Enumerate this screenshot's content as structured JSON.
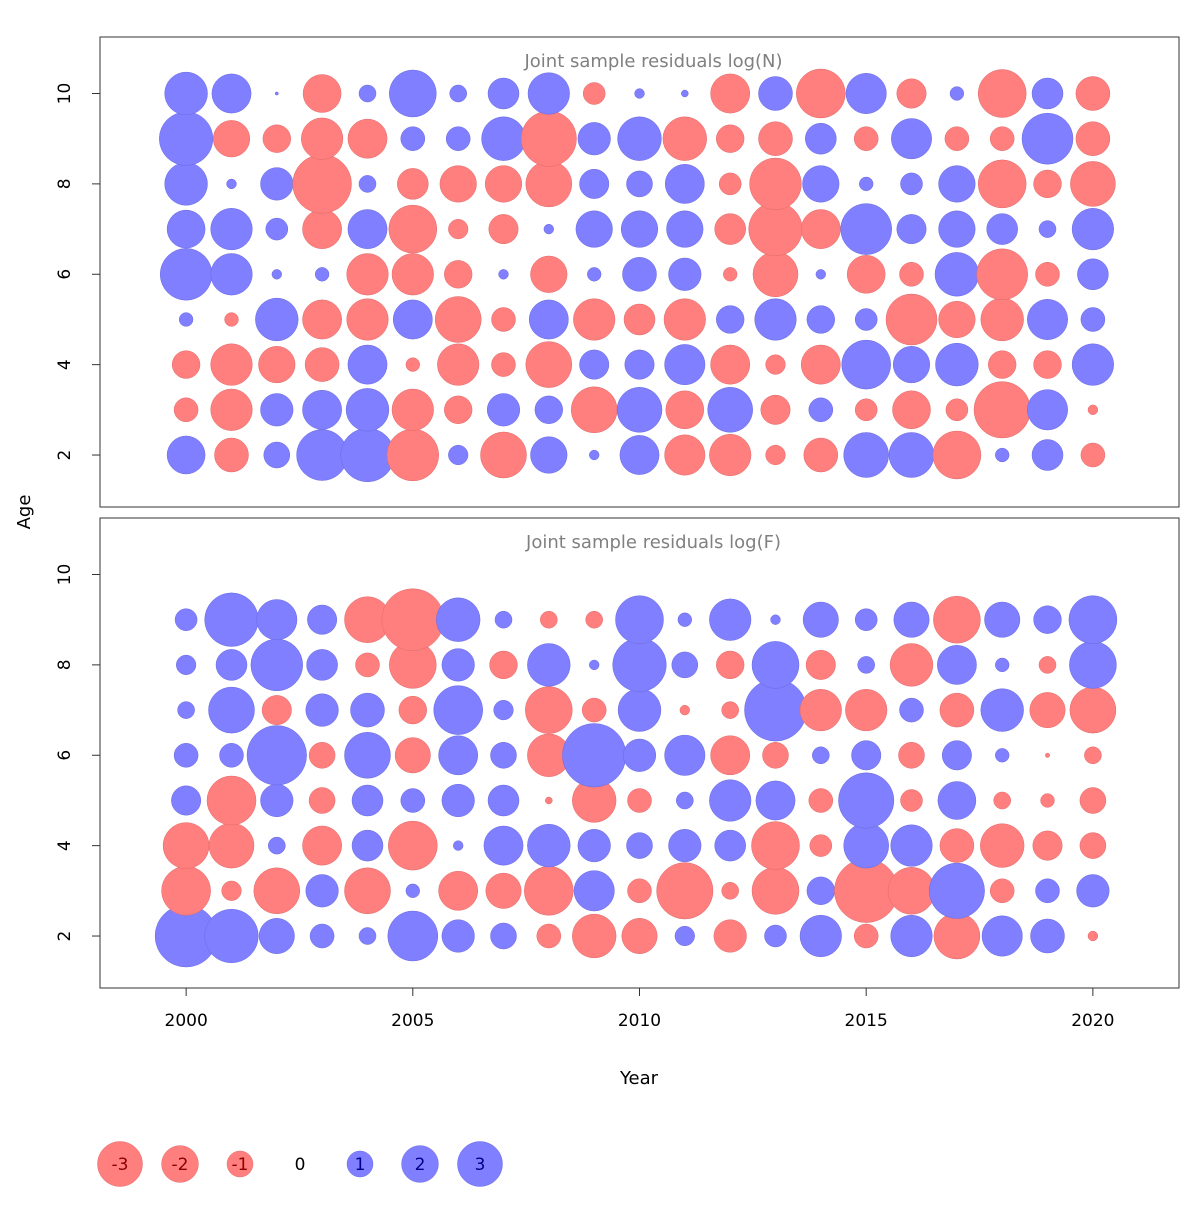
{
  "chart_data": {
    "type": "scatter",
    "ylabel": "Age",
    "xlabel": "Year",
    "x_ticks": [
      2000,
      2005,
      2010,
      2015,
      2020
    ],
    "y_ticks": [
      2,
      4,
      6,
      8,
      10
    ],
    "xlim": [
      1998.1,
      2021.9
    ],
    "ylim": [
      0.85,
      11.25
    ],
    "colors": {
      "positive": "#7f7fff",
      "negative": "#ff7f7f"
    },
    "legend": {
      "placement": "bottom-left",
      "entries": [
        {
          "label": "-3",
          "value": -3
        },
        {
          "label": "-2",
          "value": -2
        },
        {
          "label": "-1",
          "value": -1
        },
        {
          "label": "0",
          "value": 0
        },
        {
          "label": "1",
          "value": 1
        },
        {
          "label": "2",
          "value": 2
        },
        {
          "label": "3",
          "value": 3
        }
      ]
    },
    "panels": [
      {
        "title": "Joint sample residuals log(N)",
        "years": [
          2000,
          2001,
          2002,
          2003,
          2004,
          2005,
          2006,
          2007,
          2008,
          2009,
          2010,
          2011,
          2012,
          2013,
          2014,
          2015,
          2016,
          2017,
          2018,
          2019,
          2020
        ],
        "ages": [
          2,
          3,
          4,
          5,
          6,
          7,
          8,
          9,
          10
        ],
        "residuals": [
          [
            1.5,
            -1.2,
            0.7,
            2.7,
            3.0,
            -2.8,
            0.4,
            -2.2,
            1.4,
            0.1,
            1.6,
            -1.7,
            -1.8,
            -0.4,
            -1.2,
            2.1,
            2.1,
            -2.4,
            0.2,
            1.0,
            -0.6
          ],
          [
            -0.6,
            -1.8,
            1.1,
            1.6,
            1.9,
            -1.8,
            -0.8,
            1.1,
            0.8,
            -2.2,
            2.1,
            -1.5,
            2.1,
            -0.9,
            0.6,
            -0.5,
            -1.5,
            -0.5,
            -3.3,
            1.7,
            -0.1
          ],
          [
            -0.8,
            -1.8,
            -1.4,
            -1.2,
            1.6,
            -0.2,
            -1.8,
            -0.6,
            -2.2,
            0.9,
            0.9,
            1.7,
            -1.6,
            -0.4,
            -1.6,
            2.5,
            1.4,
            1.9,
            -0.8,
            -0.8,
            1.8
          ],
          [
            0.2,
            -0.2,
            1.9,
            -1.6,
            -1.8,
            1.6,
            -2.2,
            -0.6,
            1.6,
            -1.8,
            -1.0,
            -1.8,
            0.8,
            1.8,
            0.8,
            0.5,
            -2.7,
            -1.4,
            -1.9,
            1.7,
            0.6
          ],
          [
            2.8,
            1.8,
            0.1,
            0.2,
            -1.8,
            -1.8,
            -0.8,
            0.1,
            -1.4,
            0.2,
            1.2,
            1.1,
            -0.2,
            -2.1,
            0.1,
            -1.5,
            -0.6,
            2.0,
            -2.7,
            -0.6,
            1.0
          ],
          [
            1.5,
            1.8,
            0.5,
            -1.6,
            1.6,
            -2.4,
            -0.4,
            -0.9,
            0.1,
            1.4,
            1.4,
            1.4,
            -1.0,
            -3.0,
            -1.6,
            2.7,
            0.9,
            1.4,
            1.0,
            0.3,
            1.8
          ],
          [
            1.9,
            0.1,
            1.1,
            -3.6,
            0.3,
            -1.0,
            -1.4,
            -1.4,
            -2.2,
            0.9,
            0.7,
            1.6,
            -0.5,
            -2.8,
            1.4,
            0.2,
            0.5,
            1.4,
            -2.4,
            -0.8,
            -2.1
          ],
          [
            3.0,
            -1.4,
            -0.8,
            -1.8,
            -1.6,
            0.6,
            0.6,
            2.0,
            -3.2,
            1.1,
            2.0,
            -2.0,
            -0.8,
            -1.2,
            1.0,
            -0.6,
            1.7,
            -0.6,
            -0.6,
            2.7,
            -1.2
          ],
          [
            1.9,
            1.6,
            0.01,
            -1.5,
            0.3,
            2.3,
            0.3,
            1.0,
            1.8,
            -0.5,
            0.1,
            0.05,
            -1.6,
            1.2,
            -2.5,
            1.7,
            -0.9,
            0.2,
            -2.4,
            1.0,
            -1.2
          ]
        ]
      },
      {
        "title": "Joint sample residuals log(F)",
        "years": [
          2000,
          2001,
          2002,
          2003,
          2004,
          2005,
          2006,
          2007,
          2008,
          2009,
          2010,
          2011,
          2012,
          2013,
          2014,
          2015,
          2016,
          2017,
          2018,
          2019,
          2020
        ],
        "ages": [
          2,
          3,
          4,
          5,
          6,
          7,
          8,
          9
        ],
        "residuals": [
          [
            4.0,
            3.0,
            1.3,
            0.6,
            0.3,
            2.6,
            1.1,
            0.7,
            -0.6,
            -2.0,
            -1.3,
            0.4,
            -1.1,
            0.5,
            1.8,
            -0.6,
            1.8,
            -2.2,
            1.7,
            1.2,
            -0.1
          ],
          [
            -2.5,
            -0.4,
            -2.2,
            1.1,
            -2.2,
            0.2,
            -1.6,
            -1.3,
            -2.5,
            1.7,
            -0.6,
            -3.3,
            -0.3,
            -2.3,
            0.8,
            -4.2,
            -2.3,
            3.2,
            -0.6,
            0.6,
            1.1
          ],
          [
            -2.2,
            -2.1,
            0.3,
            -1.6,
            1.0,
            -2.5,
            0.1,
            1.6,
            1.9,
            1.1,
            0.7,
            1.1,
            1.0,
            -2.4,
            -0.5,
            2.1,
            1.8,
            -1.2,
            -2.0,
            -0.9,
            -0.7
          ],
          [
            0.9,
            -2.5,
            1.1,
            -0.7,
            1.0,
            0.6,
            1.1,
            1.0,
            -0.05,
            -2.0,
            -0.6,
            0.3,
            1.8,
            1.6,
            -0.6,
            3.2,
            -0.5,
            1.5,
            -0.3,
            -0.2,
            -0.7
          ],
          [
            0.6,
            0.6,
            3.7,
            -0.7,
            2.2,
            -1.3,
            1.6,
            0.7,
            -1.9,
            4.2,
            1.1,
            1.7,
            -1.6,
            -0.7,
            0.3,
            0.9,
            -0.7,
            0.9,
            0.2,
            -0.02,
            -0.3
          ],
          [
            0.3,
            2.2,
            -0.9,
            1.1,
            1.2,
            -0.8,
            2.5,
            0.4,
            -2.3,
            -0.6,
            1.9,
            -0.1,
            -0.3,
            4.0,
            -1.8,
            -1.8,
            0.6,
            -1.2,
            1.9,
            -1.3,
            -2.2
          ],
          [
            0.4,
            1.0,
            2.8,
            1.0,
            -0.6,
            -2.3,
            1.1,
            -0.8,
            1.9,
            0.1,
            3.0,
            0.7,
            -0.8,
            2.3,
            -0.9,
            0.3,
            -1.9,
            1.6,
            0.2,
            -0.3,
            2.3
          ],
          [
            0.5,
            3.0,
            1.7,
            0.9,
            -2.2,
            -4.0,
            2.0,
            0.3,
            -0.3,
            -0.3,
            2.4,
            0.2,
            1.8,
            0.1,
            1.3,
            0.5,
            1.3,
            -2.3,
            1.3,
            0.8,
            2.4
          ]
        ]
      }
    ]
  }
}
